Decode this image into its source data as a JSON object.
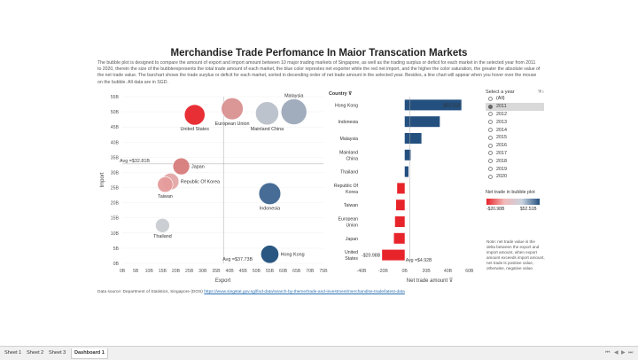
{
  "dashboard": {
    "title": "Merchandise Trade Perfomance In Maior Transcation Markets",
    "description": "The bubble plot is designed to compare the amount of export and import amount between 10 major trading markets of Singapore, as well as the trading surplus or deficit for each market in the selected year from 2011 to 2020, therein the size of the bubblerepresents the total trade amount of each market, the blue color represtes net exporter while the red net import, and the higher the color saturation, the greater the absolute value of the net trade value. The barchart shows the trade surplus or deficit for each market, sorted in decending order of net trade amount in the selected year. Besides, a line chart will appear when you hover over the mouse on the bubble. All data are in SGD.",
    "source_prefix": "Data source: Department of Statistics, Singapore (DOS)",
    "source_link": "https://www.singstat.gov.sg/find-data/search-by-theme/trade-and-investment/merchandise-trade/latest-data"
  },
  "chart_data": [
    {
      "type": "scatter",
      "title": "",
      "xlabel": "Export",
      "ylabel": "Import",
      "xlim": [
        0,
        75
      ],
      "ylim": [
        0,
        55
      ],
      "x_unit": "B",
      "y_unit": "B",
      "x_ticks": [
        "0B",
        "5B",
        "10B",
        "15B",
        "20B",
        "25B",
        "30B",
        "35B",
        "40B",
        "45B",
        "50B",
        "55B",
        "60B",
        "65B",
        "70B",
        "75B"
      ],
      "y_ticks": [
        "0B",
        "5B",
        "10B",
        "15B",
        "20B",
        "25B",
        "30B",
        "35B",
        "40B",
        "45B",
        "50B",
        "55B"
      ],
      "avg_x_label": "Avg =$37.73B",
      "avg_x": 37.73,
      "avg_y_label": "Avg =$32.81B",
      "avg_y": 32.81,
      "points": [
        {
          "label": "United States",
          "x": 27,
          "y": 49,
          "r": 8,
          "color": "#e8242b"
        },
        {
          "label": "European Union",
          "x": 41,
          "y": 51,
          "r": 8.5,
          "color": "#d99090"
        },
        {
          "label": "Mainland China",
          "x": 54,
          "y": 49.5,
          "r": 9,
          "color": "#b9c0c9"
        },
        {
          "label": "Malaysia",
          "x": 64,
          "y": 50,
          "r": 10,
          "color": "#9ca9b8"
        },
        {
          "label": "Japan",
          "x": 22,
          "y": 32,
          "r": 6.5,
          "color": "#d77b7b"
        },
        {
          "label": "Republic Of Korea",
          "x": 18,
          "y": 27,
          "r": 6.5,
          "color": "#e3a6a6"
        },
        {
          "label": "Taiwan",
          "x": 16,
          "y": 26,
          "r": 6,
          "color": "#e59b9b"
        },
        {
          "label": "Indonesia",
          "x": 55,
          "y": 23,
          "r": 8.5,
          "color": "#3d6590"
        },
        {
          "label": "Thailand",
          "x": 15,
          "y": 12.5,
          "r": 5.5,
          "color": "#c8cbd0"
        },
        {
          "label": "Hong Kong",
          "x": 55,
          "y": 3,
          "r": 7,
          "color": "#1f4e7b"
        }
      ]
    },
    {
      "type": "bar",
      "orientation": "horizontal",
      "title": "",
      "xlabel": "Net trade amount",
      "ylabel": "Country",
      "xlim": [
        -40,
        70
      ],
      "x_unit": "B",
      "x_ticks": [
        "-40B",
        "-20B",
        "0B",
        "20B",
        "40B",
        "60B"
      ],
      "categories": [
        "Hong Kong",
        "Indonesia",
        "Malaysia",
        "Mainland China",
        "Thailand",
        "Republic Of Korea",
        "Taiwan",
        "European Union",
        "Japan",
        "United States"
      ],
      "values": [
        52.51,
        32.5,
        15.5,
        5.5,
        3.5,
        -7,
        -8,
        -9,
        -10,
        -20.98
      ],
      "data_labels": {
        "Hong Kong": "$52.51B",
        "United States": "-$20.98B"
      },
      "avg_label": "Avg =$4.92B",
      "avg": 4.92
    }
  ],
  "filter": {
    "title": "Select a year",
    "years": [
      "(All)",
      "2011",
      "2012",
      "2013",
      "2014",
      "2015",
      "2016",
      "2017",
      "2018",
      "2019",
      "2020"
    ],
    "selected": "2011"
  },
  "legend": {
    "title": "Net trade in bubble plot",
    "min_label": "-$20.98B",
    "max_label": "$52.51B",
    "color_neg": "#e8242b",
    "color_pos": "#24507f"
  },
  "note": "Note: net trade value is the delta between the export and import amount, when export amount exceeds import amount, net trade is positive value, otherwise, negative value.",
  "tabs": {
    "items": [
      "Sheet 1",
      "Sheet 2",
      "Sheet 3",
      "Dashboard 1"
    ],
    "active": "Dashboard 1"
  }
}
